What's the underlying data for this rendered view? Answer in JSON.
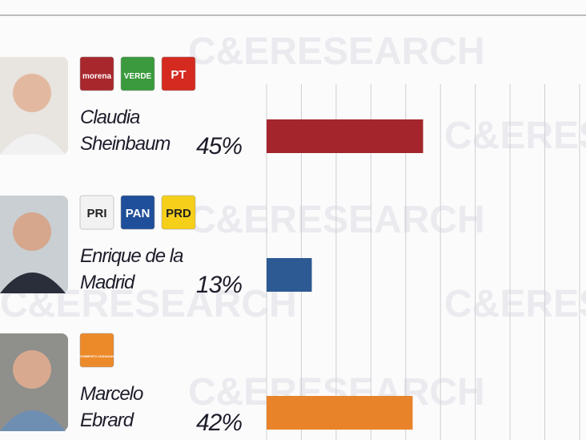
{
  "chart_data": {
    "type": "bar",
    "orientation": "horizontal",
    "watermark": "C&ERESEARCH",
    "categories": [
      "Claudia Sheinbaum",
      "Enrique de la Madrid",
      "Marcelo Ebrard"
    ],
    "values": [
      45,
      13,
      42
    ],
    "value_labels": [
      "45%",
      "13%",
      "42%"
    ],
    "colors": [
      "#a4262c",
      "#2d5a93",
      "#e8832a"
    ],
    "parties": [
      [
        {
          "name": "morena",
          "color": "#a8272d"
        },
        {
          "name": "VERDE",
          "color": "#3a9a3d"
        },
        {
          "name": "PT",
          "color": "#d42a20"
        }
      ],
      [
        {
          "name": "PRI",
          "color": "#f2f2f2"
        },
        {
          "name": "PAN",
          "color": "#1f4f9a"
        },
        {
          "name": "PRD",
          "color": "#f5cf1a"
        }
      ],
      [
        {
          "name": "MOVIMIENTO CIUDADANO",
          "color": "#ec8a2a"
        }
      ]
    ],
    "xlim": [
      0,
      90
    ],
    "xticks": [
      0,
      10,
      20,
      30,
      40,
      50,
      60,
      70,
      80,
      90
    ],
    "grid": true
  }
}
